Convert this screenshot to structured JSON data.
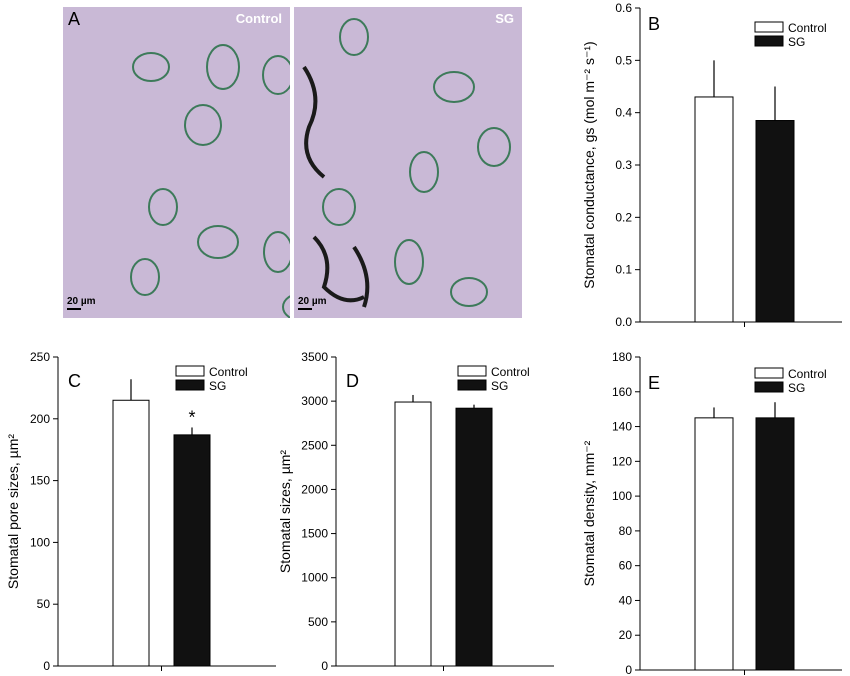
{
  "panel_a": {
    "letter": "A",
    "images": [
      {
        "label": "Control",
        "scale": "20 µm"
      },
      {
        "label": "SG",
        "scale": "20 µm"
      }
    ]
  },
  "chart_data": [
    {
      "panel": "B",
      "type": "bar",
      "categories": [
        "Control",
        "SG"
      ],
      "values": [
        0.43,
        0.385
      ],
      "errors": [
        0.07,
        0.065
      ],
      "ylabel": "Stomatal conductance, gs (mol m⁻² s⁻¹)",
      "ylim": [
        0,
        0.6
      ],
      "yticks": [
        "0.0",
        "0.1",
        "0.2",
        "0.3",
        "0.4",
        "0.5",
        "0.6"
      ],
      "legend": [
        "Control",
        "SG"
      ],
      "legend_placement": "top-right",
      "annotations": []
    },
    {
      "panel": "C",
      "type": "bar",
      "categories": [
        "Control",
        "SG"
      ],
      "values": [
        215,
        187
      ],
      "errors": [
        17,
        6
      ],
      "ylabel": "Stomatal pore sizes, µm²",
      "ylim": [
        0,
        250
      ],
      "yticks": [
        "0",
        "50",
        "100",
        "150",
        "200",
        "250"
      ],
      "legend": [
        "Control",
        "SG"
      ],
      "legend_placement": "top-right",
      "annotations": [
        "",
        "*"
      ]
    },
    {
      "panel": "D",
      "type": "bar",
      "categories": [
        "Control",
        "SG"
      ],
      "values": [
        2990,
        2920
      ],
      "errors": [
        80,
        40
      ],
      "ylabel": "Stomatal sizes, µm²",
      "ylim": [
        0,
        3500
      ],
      "yticks": [
        "0",
        "500",
        "1000",
        "1500",
        "2000",
        "2500",
        "3000",
        "3500"
      ],
      "legend": [
        "Control",
        "SG"
      ],
      "legend_placement": "top-right",
      "annotations": []
    },
    {
      "panel": "E",
      "type": "bar",
      "categories": [
        "Control",
        "SG"
      ],
      "values": [
        145,
        145
      ],
      "errors": [
        6,
        9
      ],
      "ylabel": "Stomatal density, mm⁻²",
      "ylim": [
        0,
        180
      ],
      "yticks": [
        "0",
        "20",
        "40",
        "60",
        "80",
        "100",
        "120",
        "140",
        "160",
        "180"
      ],
      "legend": [
        "Control",
        "SG"
      ],
      "legend_placement": "top-right",
      "annotations": []
    }
  ],
  "colors": {
    "control_fill": "#ffffff",
    "sg_fill": "#111111",
    "axis": "#000000"
  }
}
